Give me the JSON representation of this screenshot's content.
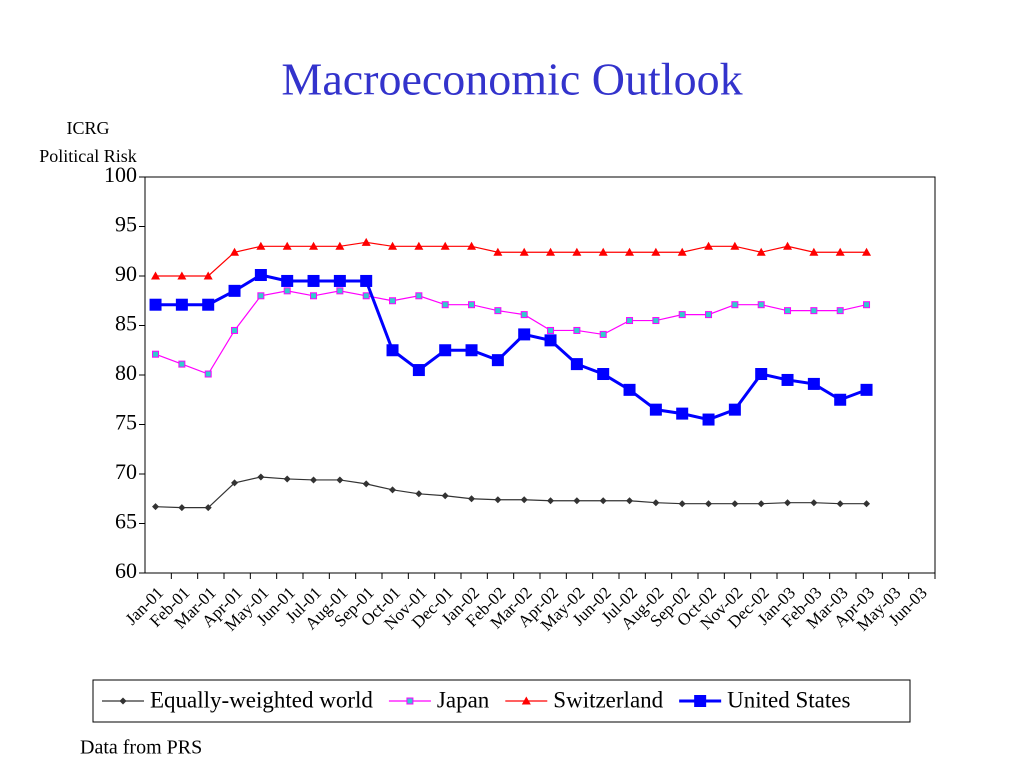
{
  "chart_data": {
    "type": "line",
    "title": "Macroeconomic Outlook",
    "y_label_lines": [
      "ICRG",
      "Political Risk"
    ],
    "footnote": "Data from PRS",
    "categories": [
      "Jan-01",
      "Feb-01",
      "Mar-01",
      "Apr-01",
      "May-01",
      "Jun-01",
      "Jul-01",
      "Aug-01",
      "Sep-01",
      "Oct-01",
      "Nov-01",
      "Dec-01",
      "Jan-02",
      "Feb-02",
      "Mar-02",
      "Apr-02",
      "May-02",
      "Jun-02",
      "Jul-02",
      "Aug-02",
      "Sep-02",
      "Oct-02",
      "Nov-02",
      "Dec-02",
      "Jan-03",
      "Feb-03",
      "Mar-03",
      "Apr-03",
      "May-03",
      "Jun-03"
    ],
    "ylim": [
      60,
      100
    ],
    "yticks": [
      60,
      65,
      70,
      75,
      80,
      85,
      90,
      95,
      100
    ],
    "series": [
      {
        "name": "Equally-weighted world",
        "color": "#333333",
        "marker": "diamond",
        "marker_color": "#333333",
        "line_width": 1.2,
        "values": [
          66.7,
          66.6,
          66.6,
          69.1,
          69.7,
          69.5,
          69.4,
          69.4,
          69,
          68.4,
          68,
          67.8,
          67.5,
          67.4,
          67.4,
          67.3,
          67.3,
          67.3,
          67.3,
          67.1,
          67,
          67,
          67,
          67,
          67.1,
          67.1,
          67,
          67,
          null,
          null
        ]
      },
      {
        "name": "Japan",
        "color": "#ff00ff",
        "marker": "square",
        "marker_color": "#33cccc",
        "line_width": 1.2,
        "values": [
          82.1,
          81.1,
          80.1,
          84.5,
          88,
          88.5,
          88,
          88.5,
          88,
          87.5,
          88,
          87.1,
          87.1,
          86.5,
          86.1,
          84.5,
          84.5,
          84.1,
          85.5,
          85.5,
          86.1,
          86.1,
          87.1,
          87.1,
          86.5,
          86.5,
          86.5,
          87.1,
          null,
          null
        ]
      },
      {
        "name": "Switzerland",
        "color": "#ff0000",
        "marker": "triangle",
        "marker_color": "#ff0000",
        "line_width": 1.2,
        "values": [
          90,
          90,
          90,
          92.4,
          93,
          93,
          93,
          93,
          93.4,
          93,
          93,
          93,
          93,
          92.4,
          92.4,
          92.4,
          92.4,
          92.4,
          92.4,
          92.4,
          92.4,
          93,
          93,
          92.4,
          93,
          92.4,
          92.4,
          92.4,
          null,
          null
        ]
      },
      {
        "name": "United States",
        "color": "#0000ff",
        "marker": "bigsquare",
        "marker_color": "#0000ff",
        "line_width": 3,
        "values": [
          87.1,
          87.1,
          87.1,
          88.5,
          90.1,
          89.5,
          89.5,
          89.5,
          89.5,
          82.5,
          80.5,
          82.5,
          82.5,
          81.5,
          84.1,
          83.5,
          81.1,
          80.1,
          78.5,
          76.5,
          76.1,
          75.5,
          76.5,
          80.1,
          79.5,
          79.1,
          77.5,
          78.5,
          null,
          null
        ]
      }
    ]
  }
}
